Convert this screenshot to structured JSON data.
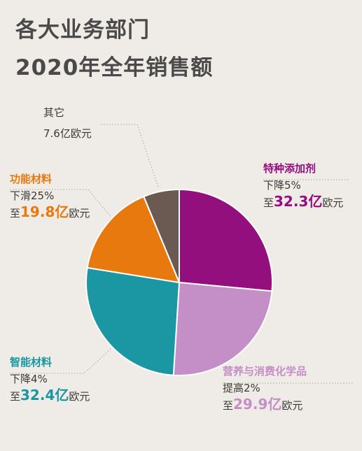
{
  "title_line1": "各大业务部门",
  "title_line2": "2020年全年销售额",
  "chart_data": {
    "type": "pie",
    "unit": "亿欧元",
    "slices": [
      {
        "name": "特种添加剂",
        "value": 32.3,
        "change": "下降5%",
        "prefix": "至",
        "value_text": "32.3亿",
        "suffix": "欧元",
        "color": "#940f7e"
      },
      {
        "name": "营养与消费化学品",
        "value": 29.9,
        "change": "提高2%",
        "prefix": "至",
        "value_text": "29.9亿",
        "suffix": "欧元",
        "color": "#c48fc6"
      },
      {
        "name": "智能材料",
        "value": 32.4,
        "change": "下降4%",
        "prefix": "至",
        "value_text": "32.4亿",
        "suffix": "欧元",
        "color": "#1a97a2"
      },
      {
        "name": "功能材料",
        "value": 19.8,
        "change": "下滑25%",
        "prefix": "至",
        "value_text": "19.8亿",
        "suffix": "欧元",
        "color": "#e8790e"
      },
      {
        "name": "其它",
        "value": 7.6,
        "value_text": "7.6亿欧元",
        "color": "#6b5a52"
      }
    ]
  }
}
